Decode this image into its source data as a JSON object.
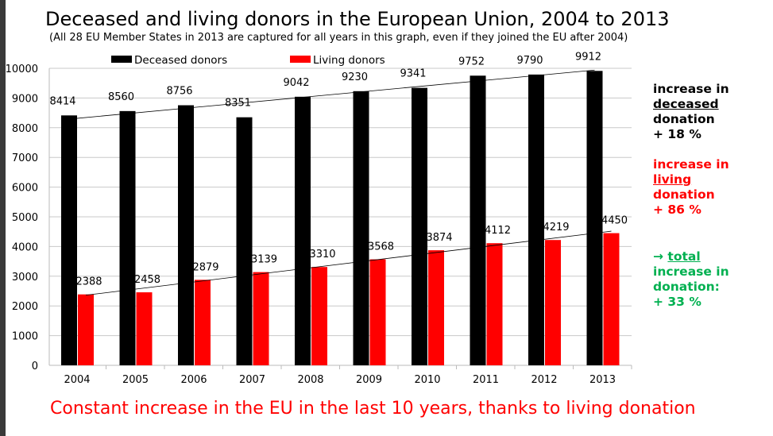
{
  "title": "Deceased and living donors in the European Union, 2004 to 2013",
  "subtitle": "(All 28 EU Member States in 2013 are captured for all years in this graph, even if they joined the EU after 2004)",
  "footer": "Constant increase in the EU in the last 10 years, thanks to living donation",
  "notes": {
    "deceased": {
      "l1": "increase in",
      "l2": "deceased",
      "l3": "donation",
      "l4": "+ 18 %",
      "color": "#000000"
    },
    "living": {
      "l1": "increase in",
      "l2": "living",
      "l3": "donation",
      "l4": "+ 86 %",
      "color": "#ff0000"
    },
    "total": {
      "arrow": "→",
      "l1": "total",
      "l2": "increase in",
      "l3": "donation:",
      "l4": "+ 33 %",
      "color": "#00b050"
    }
  },
  "chart_data": {
    "type": "bar",
    "categories": [
      "2004",
      "2005",
      "2006",
      "2007",
      "2008",
      "2009",
      "2010",
      "2011",
      "2012",
      "2013"
    ],
    "series": [
      {
        "name": "Deceased donors",
        "color": "#000000",
        "values": [
          8414,
          8560,
          8756,
          8351,
          9042,
          9230,
          9341,
          9752,
          9790,
          9912
        ]
      },
      {
        "name": "Living donors",
        "color": "#ff0000",
        "values": [
          2388,
          2458,
          2879,
          3139,
          3310,
          3568,
          3874,
          4112,
          4219,
          4450
        ]
      }
    ],
    "ylim": [
      0,
      10000
    ],
    "yticks": [
      0,
      1000,
      2000,
      3000,
      4000,
      5000,
      6000,
      7000,
      8000,
      9000,
      10000
    ],
    "grid": true,
    "trendlines": "linear",
    "legend": "top"
  }
}
